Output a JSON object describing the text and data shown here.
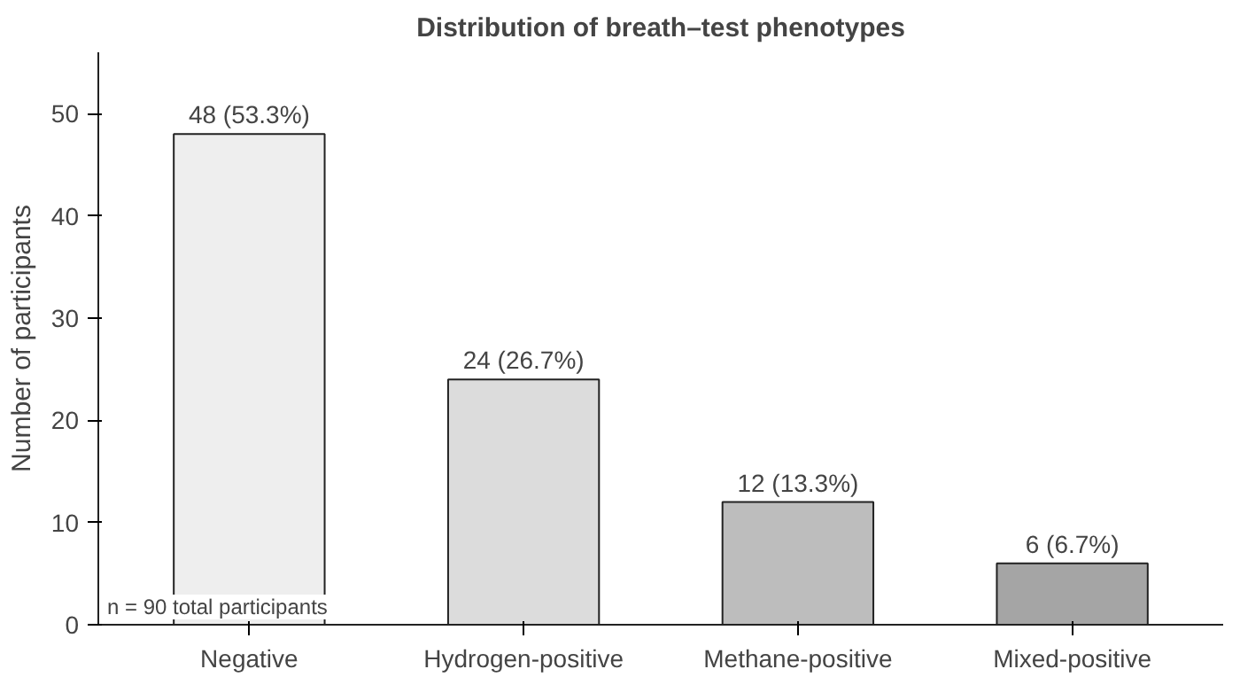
{
  "chart_data": {
    "type": "bar",
    "title": "Distribution of breath–test phenotypes",
    "ylabel": "Number of participants",
    "categories": [
      "Negative",
      "Hydrogen-positive",
      "Methane-positive",
      "Mixed-positive"
    ],
    "values": [
      48,
      24,
      12,
      6
    ],
    "colors": [
      "#eeeeee",
      "#dcdcdc",
      "#bdbdbd",
      "#a5a5a5"
    ],
    "value_labels": [
      "48 (53.3%)",
      "24 (26.7%)",
      "12 (13.3%)",
      "6 (6.7%)"
    ],
    "ylim": [
      0,
      56
    ],
    "yticks": [
      0,
      10,
      20,
      30,
      40,
      50
    ],
    "grid": false,
    "annotations": [
      "n = 90 total participants"
    ]
  }
}
